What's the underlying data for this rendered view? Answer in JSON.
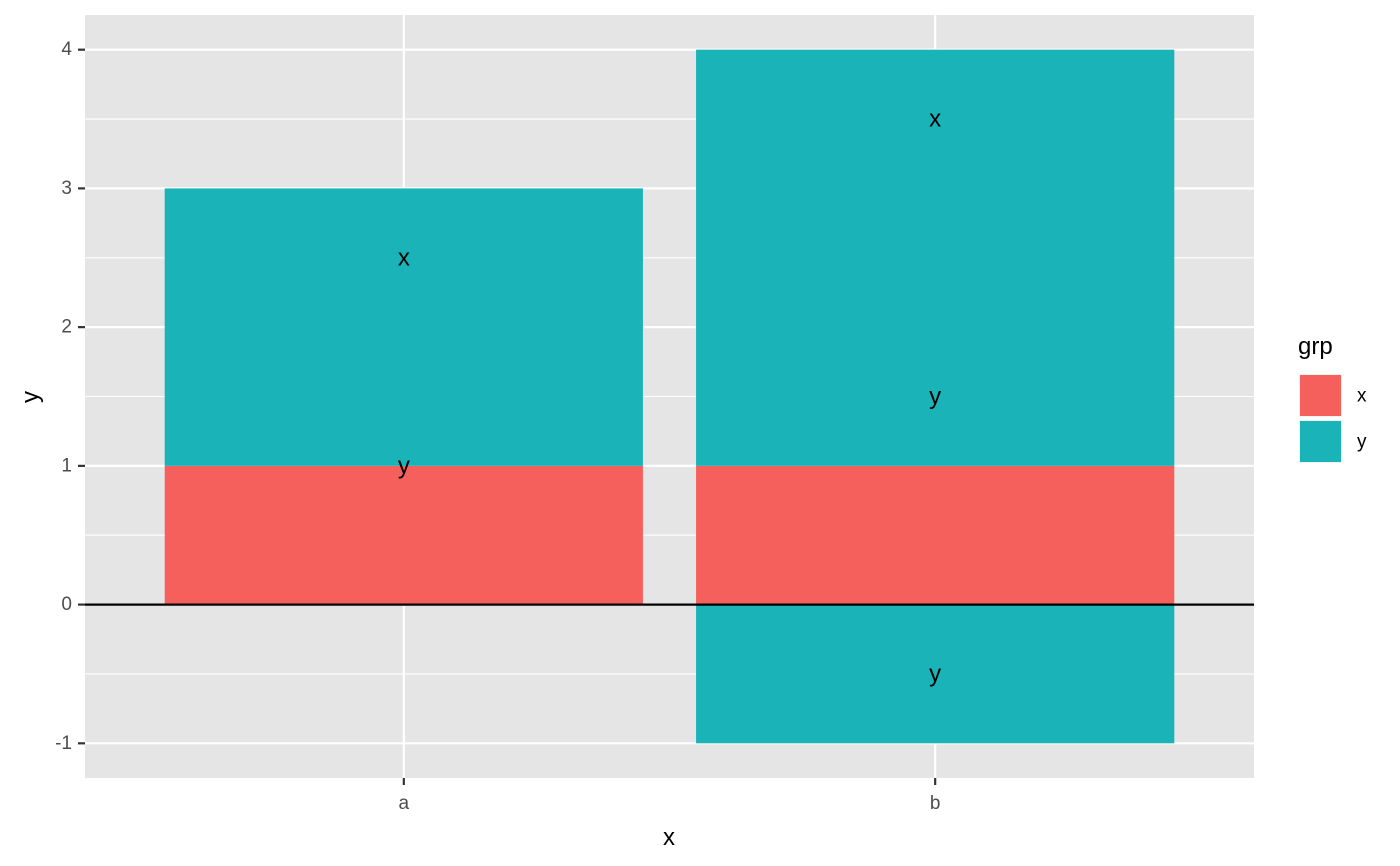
{
  "chart_data": {
    "type": "bar",
    "stacked": true,
    "categories": [
      "a",
      "b"
    ],
    "series": [
      {
        "name": "x",
        "color": "#F5605C",
        "values": [
          1,
          1
        ]
      },
      {
        "name": "y",
        "color": "#19B3B8",
        "values": [
          2,
          3
        ]
      }
    ],
    "negative_series": [
      {
        "name": "y",
        "color": "#19B3B8",
        "values": [
          0,
          -1
        ]
      }
    ],
    "bar_labels": [
      {
        "category": "a",
        "series": "y",
        "text": "y",
        "y": 1
      },
      {
        "category": "a",
        "series": "x",
        "text": "x",
        "y": 2.5
      },
      {
        "category": "b",
        "series": "y",
        "text": "y",
        "y": 1.5
      },
      {
        "category": "b",
        "series": "x",
        "text": "x",
        "y": 3.5
      },
      {
        "category": "b",
        "series": "y",
        "text": "y",
        "y": -0.5
      }
    ],
    "yticks": [
      -1,
      0,
      1,
      2,
      3,
      4
    ],
    "ytick_labels": [
      "-1",
      "0",
      "1",
      "2",
      "3",
      "4"
    ],
    "ylim": [
      -1.25,
      4.25
    ],
    "xlabel": "x",
    "ylabel": "y",
    "hline_y": 0,
    "grid": true,
    "panel_background": "#E5E5E5",
    "grid_color": "#FFFFFF",
    "legend": {
      "title": "grp",
      "position": "right",
      "entries": [
        {
          "label": "x",
          "color": "#F5605C"
        },
        {
          "label": "y",
          "color": "#19B3B8"
        }
      ]
    }
  }
}
